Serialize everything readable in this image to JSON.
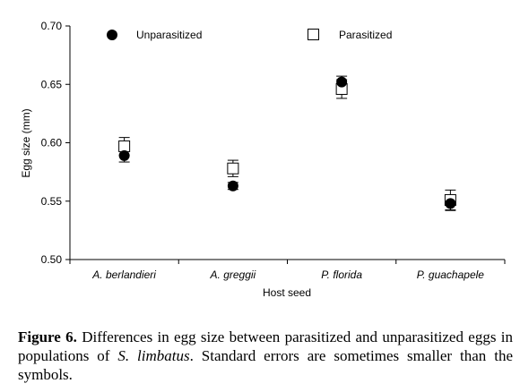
{
  "chart_data": {
    "type": "scatter",
    "categories": [
      "A. berlandieri",
      "A. greggii",
      "P. florida",
      "P. guachapele"
    ],
    "xlabel": "Host seed",
    "ylabel": "Egg size (mm)",
    "ylim": [
      0.5,
      0.7
    ],
    "yticks": [
      "0.50",
      "0.55",
      "0.60",
      "0.65",
      "0.70"
    ],
    "grid": false,
    "legend_placement": "top",
    "series": [
      {
        "name": "Unparasitized",
        "marker": "filled-circle",
        "values": [
          0.589,
          0.563,
          0.652,
          0.548
        ],
        "se": [
          0.0055,
          0.003,
          0.005,
          0.006
        ]
      },
      {
        "name": "Parasitized",
        "marker": "open-square",
        "values": [
          0.597,
          0.578,
          0.646,
          0.551
        ],
        "se": [
          0.0075,
          0.007,
          0.008,
          0.0085
        ]
      }
    ]
  },
  "caption": {
    "label": "Figure 6.",
    "text_1": " Differences in egg size between parasitized and unparasitized eggs in populations of ",
    "species": "S. limbatus",
    "text_2": ". Standard errors are sometimes smaller than the symbols."
  }
}
